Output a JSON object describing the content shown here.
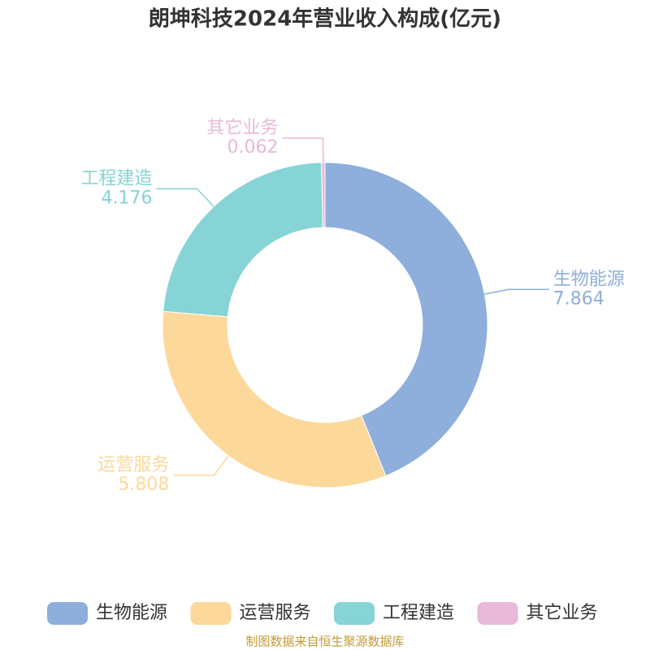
{
  "chart_data": {
    "type": "donut",
    "title": "朗坤科技2024年营业收入构成(亿元)",
    "categories": [
      "生物能源",
      "运营服务",
      "工程建造",
      "其它业务"
    ],
    "values": [
      7.864,
      5.808,
      4.176,
      0.062
    ],
    "colors": [
      "#8eaedb",
      "#fdd89b",
      "#86d4d6",
      "#e8b9d9"
    ],
    "legend": "bottom",
    "source": "制图数据来自恒生聚源数据库"
  }
}
